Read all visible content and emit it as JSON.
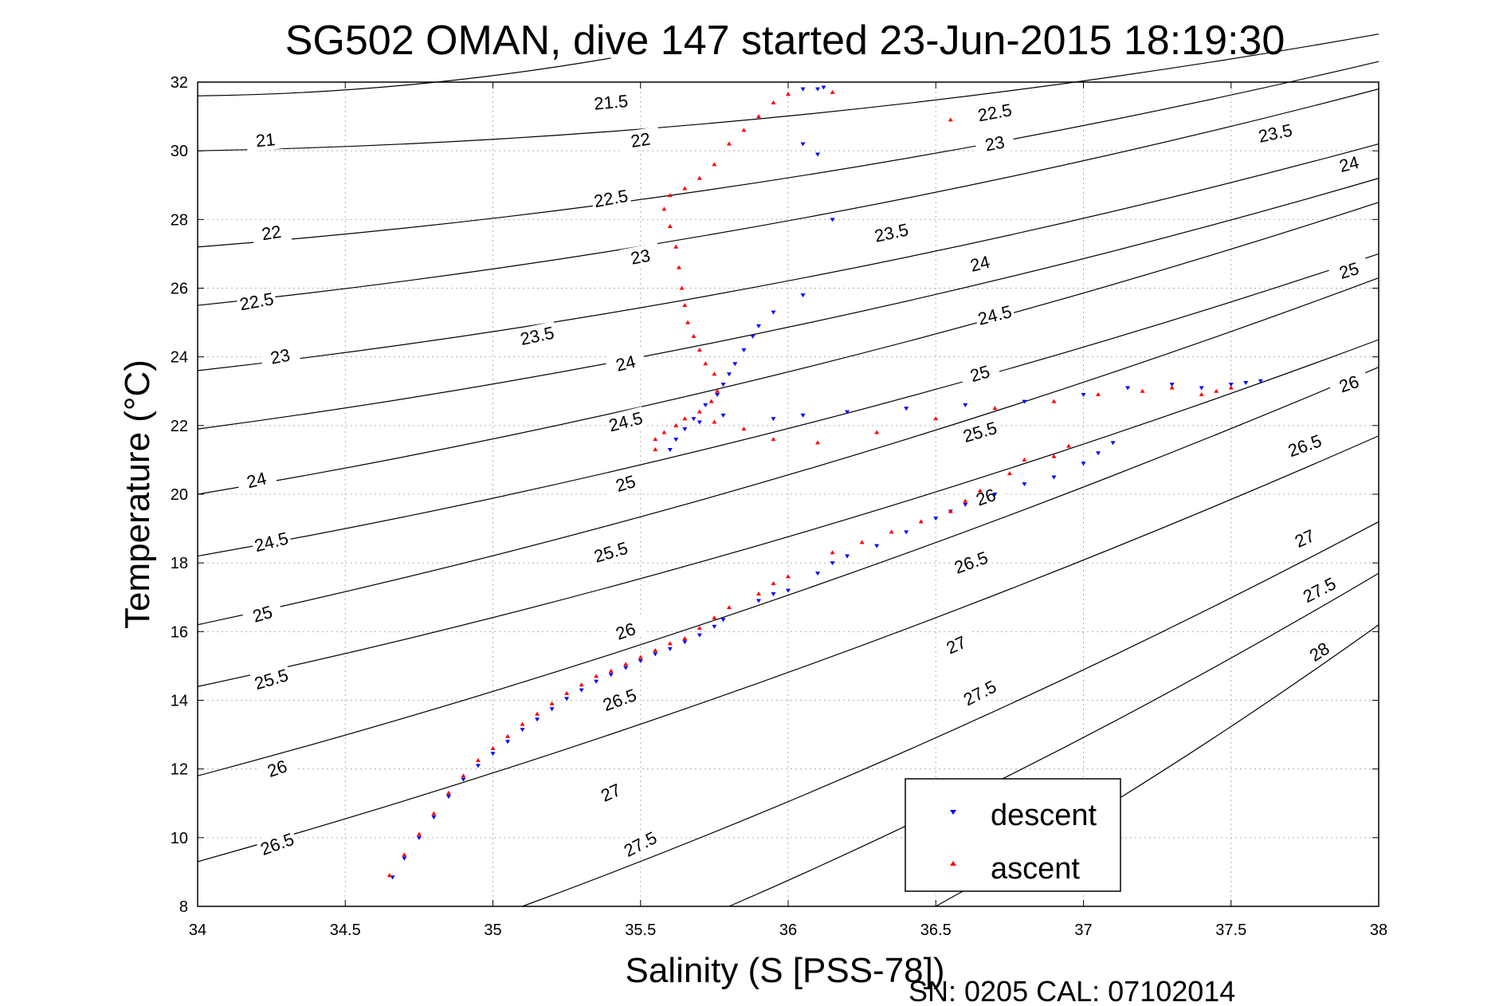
{
  "chart_data": {
    "type": "scatter",
    "title": "SG502 OMAN, dive 147 started 23-Jun-2015 18:19:30",
    "xlabel": "Salinity (S [PSS-78])",
    "ylabel": "Temperature (°C)",
    "footer": "SN: 0205  CAL: 07102014",
    "xlim": [
      34,
      38
    ],
    "ylim": [
      8,
      32
    ],
    "xticks": [
      "34",
      "34.5",
      "35",
      "35.5",
      "36",
      "36.5",
      "37",
      "37.5",
      "38"
    ],
    "yticks": [
      "8",
      "10",
      "12",
      "14",
      "16",
      "18",
      "20",
      "22",
      "24",
      "26",
      "28",
      "30",
      "32"
    ],
    "grid": true,
    "legend_position": "bottom-right",
    "contours": [
      {
        "label": "21",
        "points": [
          [
            34,
            30
          ],
          [
            38,
            33.4
          ]
        ],
        "labels_at": [
          [
            34.23,
            30.3
          ]
        ]
      },
      {
        "label": "21.5",
        "points": [
          [
            34,
            31.6
          ],
          [
            35.4,
            32.7
          ]
        ],
        "labels_at": [
          [
            35.4,
            31.4
          ]
        ]
      },
      {
        "label": "22",
        "points": [
          [
            34,
            27.2
          ],
          [
            38,
            32.6
          ]
        ],
        "labels_at": [
          [
            34.25,
            27.6
          ],
          [
            35.5,
            30.3
          ]
        ]
      },
      {
        "label": "22.5",
        "points": [
          [
            34,
            25.5
          ],
          [
            38,
            31.8
          ]
        ],
        "labels_at": [
          [
            34.2,
            25.6
          ],
          [
            35.4,
            28.6
          ],
          [
            36.7,
            31.1
          ]
        ]
      },
      {
        "label": "23",
        "points": [
          [
            34,
            23.6
          ],
          [
            38,
            30.2
          ]
        ],
        "labels_at": [
          [
            34.28,
            24.0
          ],
          [
            35.5,
            26.9
          ],
          [
            36.7,
            30.2
          ]
        ]
      },
      {
        "label": "23.5",
        "points": [
          [
            34,
            21.9
          ],
          [
            38,
            29.2
          ]
        ],
        "labels_at": [
          [
            35.15,
            24.6
          ],
          [
            36.35,
            27.6
          ],
          [
            37.65,
            30.5
          ]
        ]
      },
      {
        "label": "24",
        "points": [
          [
            34,
            20.0
          ],
          [
            38,
            28.5
          ]
        ],
        "labels_at": [
          [
            34.2,
            20.4
          ],
          [
            35.45,
            23.8
          ],
          [
            36.65,
            26.7
          ],
          [
            37.9,
            29.6
          ]
        ]
      },
      {
        "label": "24.5",
        "points": [
          [
            34,
            18.2
          ],
          [
            38,
            27.0
          ]
        ],
        "labels_at": [
          [
            34.25,
            18.6
          ],
          [
            35.45,
            22.1
          ],
          [
            36.7,
            25.2
          ]
        ]
      },
      {
        "label": "25",
        "points": [
          [
            34,
            16.2
          ],
          [
            38,
            26.3
          ]
        ],
        "labels_at": [
          [
            34.22,
            16.5
          ],
          [
            35.45,
            20.3
          ],
          [
            36.65,
            23.5
          ],
          [
            37.9,
            26.5
          ]
        ]
      },
      {
        "label": "25.5",
        "points": [
          [
            34,
            14.4
          ],
          [
            38,
            24.5
          ]
        ],
        "labels_at": [
          [
            34.25,
            14.6
          ],
          [
            35.4,
            18.3
          ],
          [
            36.65,
            21.8
          ]
        ]
      },
      {
        "label": "26",
        "points": [
          [
            34,
            11.8
          ],
          [
            38,
            23.7
          ]
        ],
        "labels_at": [
          [
            34.27,
            12.0
          ],
          [
            35.45,
            16.0
          ],
          [
            36.67,
            19.9
          ],
          [
            37.9,
            23.2
          ]
        ]
      },
      {
        "label": "26.5",
        "points": [
          [
            34,
            9.3
          ],
          [
            38,
            21.7
          ]
        ],
        "labels_at": [
          [
            34.27,
            9.8
          ],
          [
            35.43,
            14.0
          ],
          [
            36.62,
            18.0
          ],
          [
            37.75,
            21.4
          ]
        ]
      },
      {
        "label": "27",
        "points": [
          [
            35.1,
            8
          ],
          [
            38,
            19.2
          ]
        ],
        "labels_at": [
          [
            35.4,
            11.3
          ],
          [
            36.57,
            15.6
          ],
          [
            37.75,
            18.7
          ]
        ]
      },
      {
        "label": "27.5",
        "points": [
          [
            35.8,
            8
          ],
          [
            38,
            17.7
          ]
        ],
        "labels_at": [
          [
            35.5,
            9.8
          ],
          [
            36.65,
            14.2
          ],
          [
            37.8,
            17.2
          ]
        ]
      },
      {
        "label": "28",
        "points": [
          [
            36.5,
            8
          ],
          [
            38,
            16.2
          ]
        ],
        "labels_at": [
          [
            37.8,
            15.4
          ]
        ]
      }
    ],
    "series": [
      {
        "name": "descent",
        "color": "#0000ff",
        "marker": "triangle-down",
        "points": [
          [
            34.66,
            8.85
          ],
          [
            34.7,
            9.4
          ],
          [
            34.75,
            10.0
          ],
          [
            34.8,
            10.6
          ],
          [
            34.85,
            11.2
          ],
          [
            34.9,
            11.7
          ],
          [
            34.95,
            12.1
          ],
          [
            35.0,
            12.45
          ],
          [
            35.05,
            12.8
          ],
          [
            35.1,
            13.15
          ],
          [
            35.15,
            13.45
          ],
          [
            35.2,
            13.75
          ],
          [
            35.25,
            14.05
          ],
          [
            35.3,
            14.3
          ],
          [
            35.35,
            14.55
          ],
          [
            35.4,
            14.75
          ],
          [
            35.45,
            14.95
          ],
          [
            35.5,
            15.15
          ],
          [
            35.55,
            15.35
          ],
          [
            35.6,
            15.5
          ],
          [
            35.65,
            15.7
          ],
          [
            35.7,
            15.9
          ],
          [
            35.75,
            16.15
          ],
          [
            35.78,
            16.35
          ],
          [
            35.9,
            16.9
          ],
          [
            35.95,
            17.1
          ],
          [
            36.0,
            17.2
          ],
          [
            36.1,
            17.7
          ],
          [
            36.15,
            18.0
          ],
          [
            36.2,
            18.2
          ],
          [
            36.3,
            18.5
          ],
          [
            36.4,
            18.9
          ],
          [
            36.5,
            19.3
          ],
          [
            36.55,
            19.5
          ],
          [
            36.6,
            19.7
          ],
          [
            36.7,
            20.0
          ],
          [
            36.8,
            20.3
          ],
          [
            36.9,
            20.5
          ],
          [
            37.0,
            20.9
          ],
          [
            37.05,
            21.2
          ],
          [
            37.1,
            21.5
          ],
          [
            35.6,
            21.3
          ],
          [
            35.62,
            21.6
          ],
          [
            35.65,
            21.9
          ],
          [
            35.68,
            22.2
          ],
          [
            35.72,
            22.6
          ],
          [
            35.76,
            22.9
          ],
          [
            35.78,
            23.2
          ],
          [
            35.8,
            23.5
          ],
          [
            35.82,
            23.8
          ],
          [
            35.85,
            24.2
          ],
          [
            35.88,
            24.6
          ],
          [
            35.9,
            24.9
          ],
          [
            35.95,
            25.3
          ],
          [
            36.05,
            25.8
          ],
          [
            36.1,
            29.9
          ],
          [
            36.15,
            28.0
          ],
          [
            36.05,
            30.2
          ],
          [
            36.05,
            31.8
          ],
          [
            36.1,
            31.8
          ],
          [
            36.12,
            31.85
          ],
          [
            35.7,
            22.1
          ],
          [
            35.78,
            22.3
          ],
          [
            35.95,
            22.2
          ],
          [
            36.05,
            22.3
          ],
          [
            36.2,
            22.4
          ],
          [
            36.4,
            22.5
          ],
          [
            36.6,
            22.6
          ],
          [
            36.8,
            22.7
          ],
          [
            37.0,
            22.9
          ],
          [
            37.15,
            23.1
          ],
          [
            37.3,
            23.2
          ],
          [
            37.4,
            23.1
          ],
          [
            37.5,
            23.2
          ],
          [
            37.55,
            23.25
          ],
          [
            37.6,
            23.3
          ]
        ]
      },
      {
        "name": "ascent",
        "color": "#ff0000",
        "marker": "triangle-up",
        "points": [
          [
            34.65,
            8.9
          ],
          [
            34.7,
            9.5
          ],
          [
            34.75,
            10.1
          ],
          [
            34.8,
            10.7
          ],
          [
            34.85,
            11.3
          ],
          [
            34.9,
            11.8
          ],
          [
            34.95,
            12.25
          ],
          [
            35.0,
            12.6
          ],
          [
            35.05,
            12.95
          ],
          [
            35.1,
            13.3
          ],
          [
            35.15,
            13.6
          ],
          [
            35.2,
            13.9
          ],
          [
            35.25,
            14.2
          ],
          [
            35.3,
            14.45
          ],
          [
            35.35,
            14.7
          ],
          [
            35.4,
            14.85
          ],
          [
            35.45,
            15.05
          ],
          [
            35.5,
            15.25
          ],
          [
            35.55,
            15.45
          ],
          [
            35.6,
            15.65
          ],
          [
            35.65,
            15.8
          ],
          [
            35.7,
            16.1
          ],
          [
            35.75,
            16.4
          ],
          [
            35.8,
            16.7
          ],
          [
            35.9,
            17.1
          ],
          [
            35.95,
            17.4
          ],
          [
            36.0,
            17.6
          ],
          [
            36.15,
            18.3
          ],
          [
            36.25,
            18.6
          ],
          [
            36.35,
            18.9
          ],
          [
            36.45,
            19.2
          ],
          [
            36.55,
            19.5
          ],
          [
            36.6,
            19.8
          ],
          [
            36.65,
            20.1
          ],
          [
            36.75,
            20.6
          ],
          [
            36.8,
            21.0
          ],
          [
            36.9,
            21.1
          ],
          [
            36.95,
            21.4
          ],
          [
            35.55,
            21.3
          ],
          [
            35.55,
            21.6
          ],
          [
            35.58,
            21.8
          ],
          [
            35.62,
            22.0
          ],
          [
            35.65,
            22.2
          ],
          [
            35.7,
            22.4
          ],
          [
            35.74,
            22.7
          ],
          [
            35.76,
            23.0
          ],
          [
            35.75,
            23.5
          ],
          [
            35.72,
            23.8
          ],
          [
            35.7,
            24.2
          ],
          [
            35.68,
            24.6
          ],
          [
            35.66,
            25.0
          ],
          [
            35.65,
            25.5
          ],
          [
            35.64,
            26.0
          ],
          [
            35.63,
            26.6
          ],
          [
            35.62,
            27.2
          ],
          [
            35.6,
            27.8
          ],
          [
            35.58,
            28.3
          ],
          [
            35.6,
            28.7
          ],
          [
            35.65,
            28.9
          ],
          [
            35.7,
            29.2
          ],
          [
            35.75,
            29.6
          ],
          [
            35.8,
            30.2
          ],
          [
            35.85,
            30.6
          ],
          [
            35.9,
            31.0
          ],
          [
            35.95,
            31.4
          ],
          [
            36.0,
            31.65
          ],
          [
            36.15,
            31.7
          ],
          [
            36.55,
            30.9
          ],
          [
            35.75,
            22.1
          ],
          [
            35.85,
            21.9
          ],
          [
            35.95,
            21.6
          ],
          [
            36.1,
            21.5
          ],
          [
            36.3,
            21.8
          ],
          [
            36.5,
            22.2
          ],
          [
            36.7,
            22.5
          ],
          [
            36.9,
            22.7
          ],
          [
            37.05,
            22.9
          ],
          [
            37.2,
            23.0
          ],
          [
            37.3,
            23.1
          ],
          [
            37.4,
            22.9
          ],
          [
            37.45,
            23.0
          ],
          [
            37.5,
            23.1
          ]
        ]
      }
    ]
  }
}
